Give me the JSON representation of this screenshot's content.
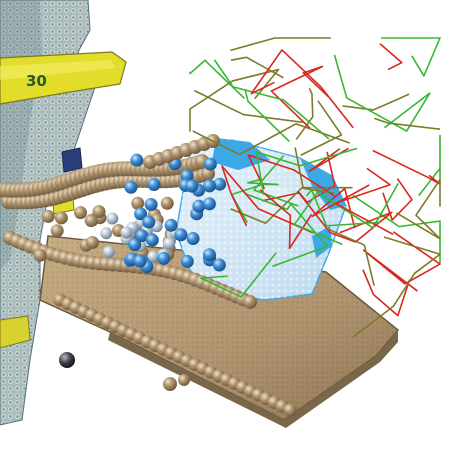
{
  "scene": {
    "background_color": "#ffffff",
    "colors": {
      "sand": "#b39a72",
      "sand_dark": "#7a6648",
      "sand_light": "#d8c4a0",
      "bead": "#a58a62",
      "bead_highlight": "#e6d7b8",
      "blue_bead": "#3d8fd8",
      "blue_bead_light": "#a9d2f2",
      "cloth_light": "#cfe5f5",
      "cloth_blue": "#3ca8e6",
      "shelf_gray": "#9eb0b0",
      "shelf_dark": "#55707a",
      "label_yellow": "#e2dc2a",
      "rod_red": "#d8281e",
      "rod_green": "#38b832",
      "rod_olive": "#7e7a2a"
    },
    "shelf_label_text": "30"
  }
}
